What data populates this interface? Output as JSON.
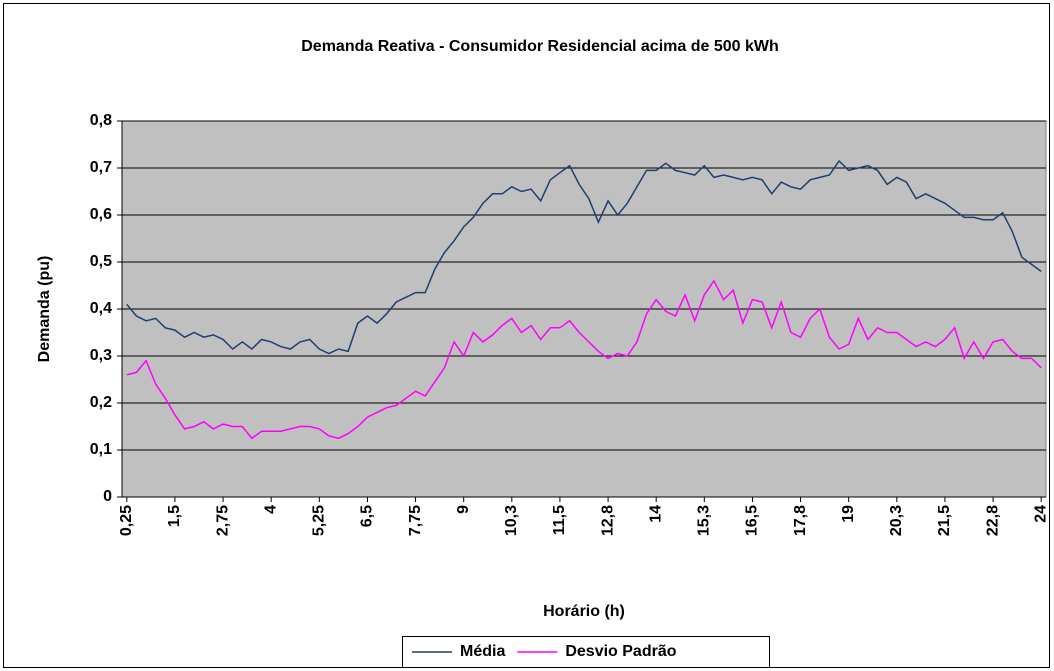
{
  "chart_data": {
    "type": "line",
    "title": "Demanda Reativa - Consumidor Residencial acima de 500 kWh",
    "xlabel": "Horário (h)",
    "ylabel": "Demanda (pu)",
    "categories": [
      "0,25",
      null,
      null,
      null,
      null,
      "1,5",
      null,
      null,
      null,
      null,
      "2,75",
      null,
      null,
      null,
      null,
      "4",
      null,
      null,
      null,
      null,
      "5,25",
      null,
      null,
      null,
      null,
      "6,5",
      null,
      null,
      null,
      null,
      "7,75",
      null,
      null,
      null,
      null,
      "9",
      null,
      null,
      null,
      null,
      "10,3",
      null,
      null,
      null,
      null,
      "11,5",
      null,
      null,
      null,
      null,
      "12,8",
      null,
      null,
      null,
      null,
      "14",
      null,
      null,
      null,
      null,
      "15,3",
      null,
      null,
      null,
      null,
      "16,5",
      null,
      null,
      null,
      null,
      "17,8",
      null,
      null,
      null,
      null,
      "19",
      null,
      null,
      null,
      null,
      "20,3",
      null,
      null,
      null,
      null,
      "21,5",
      null,
      null,
      null,
      null,
      "22,8",
      null,
      null,
      null,
      null,
      "24"
    ],
    "series": [
      {
        "name": "Média",
        "color": "#1f3f6e",
        "values": [
          0.41,
          0.385,
          0.375,
          0.38,
          0.36,
          0.355,
          0.34,
          0.35,
          0.34,
          0.345,
          0.335,
          0.315,
          0.33,
          0.315,
          0.335,
          0.33,
          0.32,
          0.315,
          0.33,
          0.335,
          0.315,
          0.305,
          0.315,
          0.31,
          0.37,
          0.385,
          0.37,
          0.39,
          0.415,
          0.425,
          0.435,
          0.435,
          0.485,
          0.52,
          0.545,
          0.575,
          0.595,
          0.625,
          0.645,
          0.645,
          0.66,
          0.65,
          0.655,
          0.63,
          0.675,
          0.69,
          0.705,
          0.665,
          0.635,
          0.585,
          0.63,
          0.6,
          0.625,
          0.66,
          0.695,
          0.695,
          0.71,
          0.695,
          0.69,
          0.685,
          0.705,
          0.68,
          0.685,
          0.68,
          0.675,
          0.68,
          0.675,
          0.645,
          0.67,
          0.66,
          0.655,
          0.675,
          0.68,
          0.685,
          0.715,
          0.695,
          0.7,
          0.705,
          0.695,
          0.665,
          0.68,
          0.67,
          0.635,
          0.645,
          0.635,
          0.625,
          0.61,
          0.595,
          0.595,
          0.59,
          0.59,
          0.605,
          0.565,
          0.51,
          0.495,
          0.48
        ]
      },
      {
        "name": "Desvio Padrão",
        "color": "#ff00ff",
        "values": [
          0.26,
          0.265,
          0.29,
          0.24,
          0.21,
          0.175,
          0.145,
          0.15,
          0.16,
          0.145,
          0.155,
          0.15,
          0.15,
          0.125,
          0.14,
          0.14,
          0.14,
          0.145,
          0.15,
          0.15,
          0.145,
          0.13,
          0.125,
          0.135,
          0.15,
          0.17,
          0.18,
          0.19,
          0.195,
          0.21,
          0.225,
          0.215,
          0.245,
          0.275,
          0.33,
          0.3,
          0.35,
          0.33,
          0.345,
          0.365,
          0.38,
          0.35,
          0.365,
          0.335,
          0.36,
          0.36,
          0.375,
          0.35,
          0.33,
          0.31,
          0.295,
          0.305,
          0.3,
          0.33,
          0.39,
          0.42,
          0.395,
          0.385,
          0.43,
          0.375,
          0.43,
          0.46,
          0.42,
          0.44,
          0.37,
          0.42,
          0.415,
          0.36,
          0.415,
          0.35,
          0.34,
          0.38,
          0.4,
          0.34,
          0.315,
          0.325,
          0.38,
          0.335,
          0.36,
          0.35,
          0.35,
          0.335,
          0.32,
          0.33,
          0.32,
          0.335,
          0.36,
          0.295,
          0.33,
          0.295,
          0.33,
          0.335,
          0.31,
          0.295,
          0.295,
          0.275
        ]
      }
    ],
    "ylim": [
      0,
      0.8
    ],
    "yticks": [
      0,
      {
        "value": 0.1,
        "label": "0,1"
      },
      {
        "value": 0.2,
        "label": "0,2"
      },
      {
        "value": 0.3,
        "label": "0,3"
      },
      {
        "value": 0.4,
        "label": "0,4"
      },
      {
        "value": 0.5,
        "label": "0,5"
      },
      {
        "value": 0.6,
        "label": "0,6"
      },
      {
        "value": 0.7,
        "label": "0,7"
      },
      {
        "value": 0.8,
        "label": "0,8"
      }
    ],
    "grid": true,
    "legend": "bottom",
    "plot_background": "#c0c0c0"
  }
}
